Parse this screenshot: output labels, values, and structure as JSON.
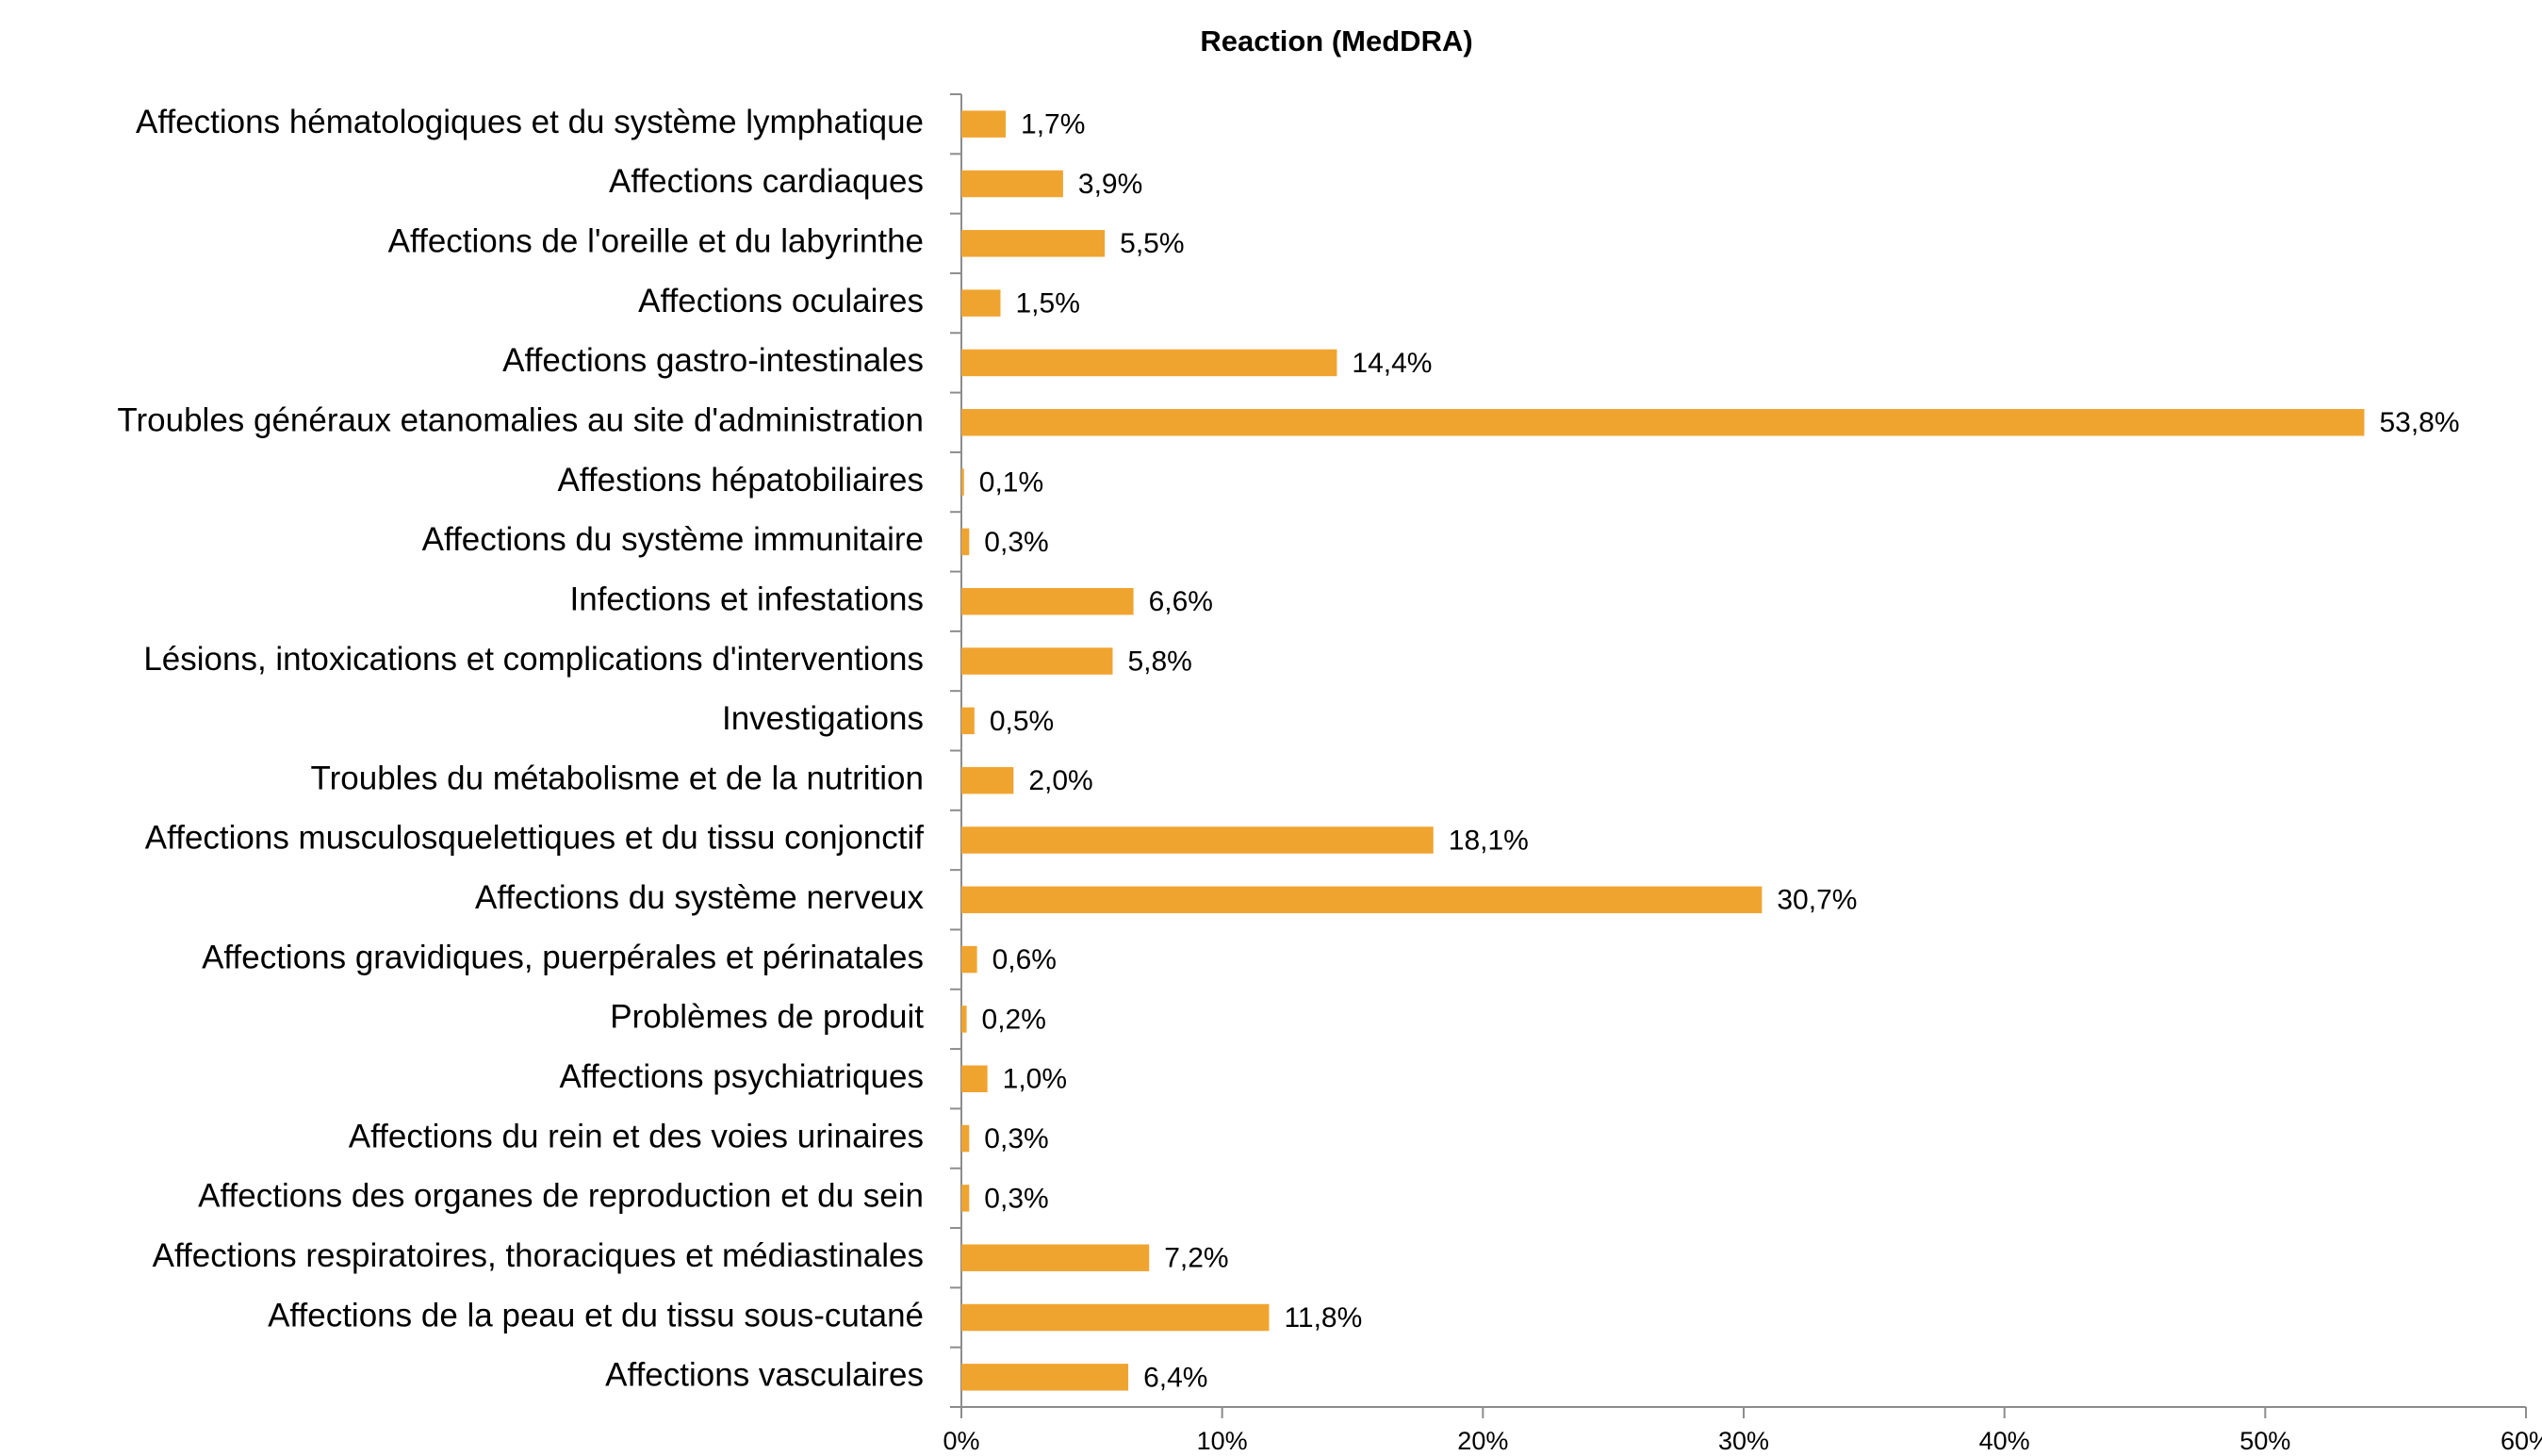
{
  "chart_data": {
    "type": "bar",
    "orientation": "horizontal",
    "title": "Reaction (MedDRA)",
    "categories": [
      "Affections hématologiques et du système lymphatique",
      "Affections cardiaques",
      "Affections de l'oreille et du labyrinthe",
      "Affections oculaires",
      "Affections gastro-intestinales",
      "Troubles généraux etanomalies au site d'administration",
      "Affestions hépatobiliaires",
      "Affections du système immunitaire",
      "Infections et infestations",
      "Lésions, intoxications et complications d'interventions",
      "Investigations",
      "Troubles du métabolisme et de la nutrition",
      "Affections musculosquelettiques et du tissu conjonctif",
      "Affections du système nerveux",
      "Affections gravidiques, puerpérales et périnatales",
      "Problèmes de produit",
      "Affections psychiatriques",
      "Affections du rein et des voies urinaires",
      "Affections des organes de reproduction et du sein",
      "Affections respiratoires, thoraciques et médiastinales",
      "Affections de la peau et du tissu sous-cutané",
      "Affections vasculaires"
    ],
    "values": [
      1.7,
      3.9,
      5.5,
      1.5,
      14.4,
      53.8,
      0.1,
      0.3,
      6.6,
      5.8,
      0.5,
      2.0,
      18.1,
      30.7,
      0.6,
      0.2,
      1.0,
      0.3,
      0.3,
      7.2,
      11.8,
      6.4
    ],
    "value_labels": [
      "1,7%",
      "3,9%",
      "5,5%",
      "1,5%",
      "14,4%",
      "53,8%",
      "0,1%",
      "0,3%",
      "6,6%",
      "5,8%",
      "0,5%",
      "2,0%",
      "18,1%",
      "30,7%",
      "0,6%",
      "0,2%",
      "1,0%",
      "0,3%",
      "0,3%",
      "7,2%",
      "11,8%",
      "6,4%"
    ],
    "color": "#f0a430",
    "xlim": [
      0,
      60
    ],
    "xticks": [
      {
        "value": 0,
        "label": "0%"
      },
      {
        "value": 10,
        "label": "10%"
      },
      {
        "value": 20,
        "label": "20%"
      },
      {
        "value": 30,
        "label": "30%"
      },
      {
        "value": 40,
        "label": "40%"
      },
      {
        "value": 50,
        "label": "50%"
      },
      {
        "value": 60,
        "label": "60%"
      }
    ],
    "grid": false
  }
}
